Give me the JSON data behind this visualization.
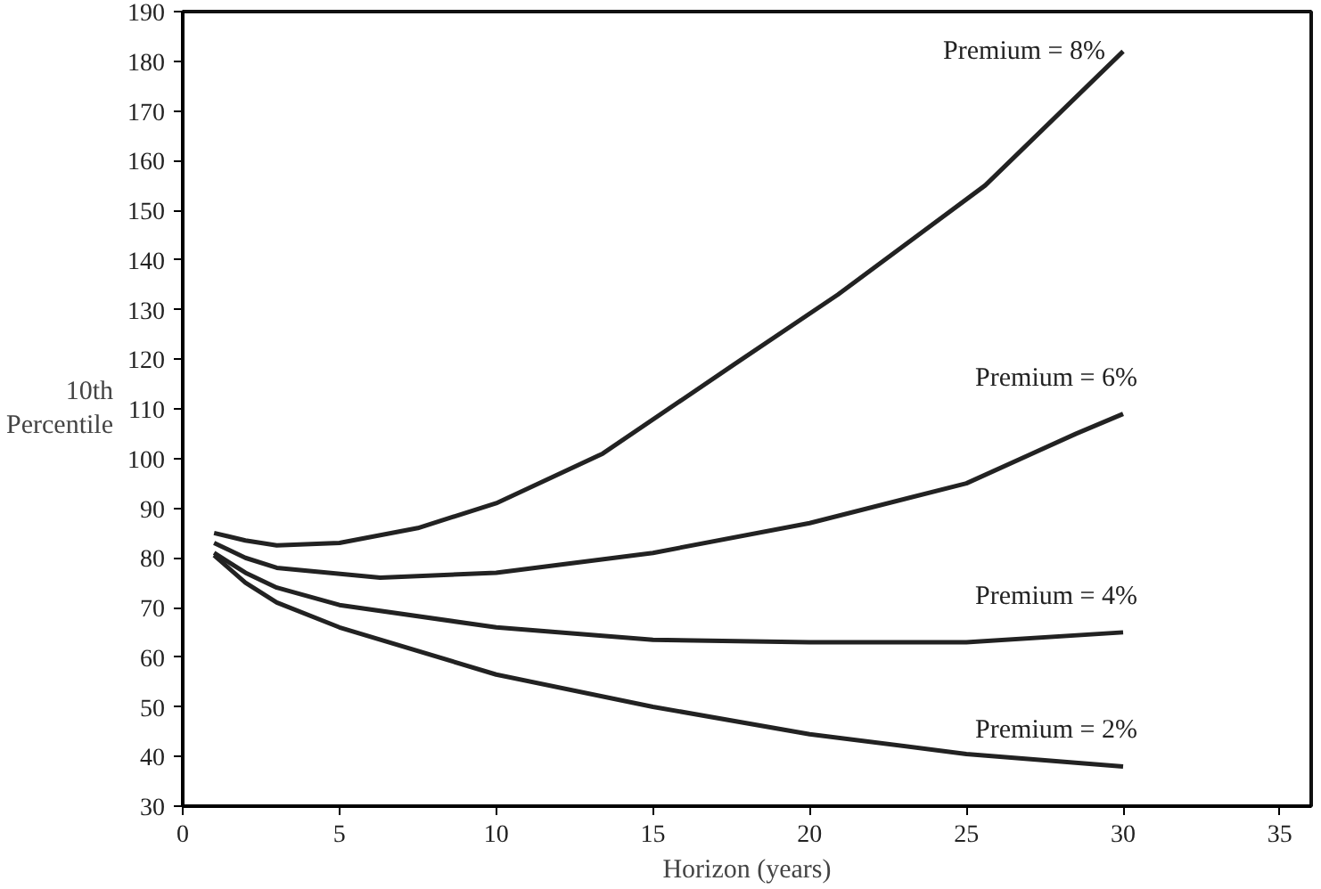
{
  "chart_data": {
    "type": "line",
    "xlabel": "Horizon (years)",
    "ylabel": "10th\nPercentile",
    "xlim": [
      0,
      36
    ],
    "ylim": [
      30,
      190
    ],
    "xticks": [
      0,
      5,
      10,
      15,
      20,
      25,
      30,
      35
    ],
    "yticks": [
      30,
      40,
      50,
      60,
      70,
      80,
      90,
      100,
      110,
      120,
      130,
      140,
      150,
      160,
      170,
      180,
      190
    ],
    "grid": false,
    "marker": "none",
    "line_style": "solid",
    "series": [
      {
        "name": "Premium = 8%",
        "color": "#222222",
        "x": [
          1,
          2,
          3,
          5,
          7.5,
          10,
          13.4,
          17.6,
          20.9,
          25.6,
          30
        ],
        "values": [
          85,
          83.5,
          82.5,
          83,
          86,
          91,
          101,
          119,
          133,
          155,
          182
        ]
      },
      {
        "name": "Premium = 6%",
        "color": "#222222",
        "x": [
          1,
          2,
          3,
          6.3,
          10,
          15,
          20,
          25,
          28.5,
          30
        ],
        "values": [
          83,
          80,
          78,
          76,
          77,
          81,
          87,
          95,
          105,
          109
        ]
      },
      {
        "name": "Premium = 4%",
        "color": "#222222",
        "x": [
          1,
          2,
          3,
          5,
          10,
          15,
          20,
          25,
          30
        ],
        "values": [
          81,
          77,
          74,
          70.5,
          66,
          63.5,
          63,
          63,
          65
        ]
      },
      {
        "name": "Premium = 2%",
        "color": "#222222",
        "x": [
          1,
          2,
          3,
          5,
          10,
          15,
          20,
          25,
          30
        ],
        "values": [
          80.5,
          75,
          71,
          66,
          56.5,
          50,
          44.5,
          40.5,
          38
        ]
      }
    ]
  }
}
